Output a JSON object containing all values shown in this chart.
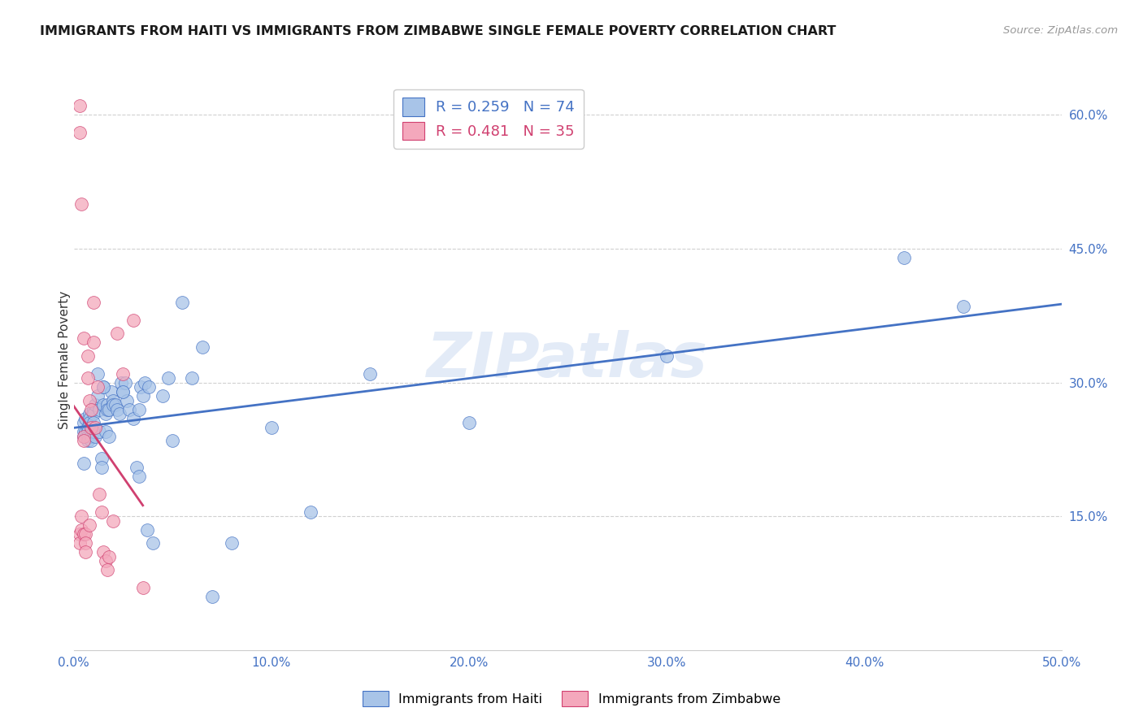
{
  "title": "IMMIGRANTS FROM HAITI VS IMMIGRANTS FROM ZIMBABWE SINGLE FEMALE POVERTY CORRELATION CHART",
  "source": "Source: ZipAtlas.com",
  "ylabel": "Single Female Poverty",
  "xlim": [
    0.0,
    50.0
  ],
  "ylim": [
    0.0,
    65.0
  ],
  "haiti_color": "#a8c4e8",
  "zimbabwe_color": "#f4a8bc",
  "haiti_line_color": "#4472c4",
  "zimbabwe_line_color": "#d04070",
  "watermark": "ZIPatlas",
  "haiti_R": "0.259",
  "haiti_N": "74",
  "zimbabwe_R": "0.481",
  "zimbabwe_N": "35",
  "haiti_label": "Immigrants from Haiti",
  "zimbabwe_label": "Immigrants from Zimbabwe",
  "haiti_x": [
    0.5,
    0.5,
    0.5,
    0.5,
    0.6,
    0.6,
    0.7,
    0.7,
    0.7,
    0.7,
    0.8,
    0.8,
    0.8,
    0.9,
    0.9,
    0.9,
    1.0,
    1.0,
    1.0,
    1.0,
    1.1,
    1.1,
    1.2,
    1.2,
    1.3,
    1.3,
    1.4,
    1.4,
    1.5,
    1.5,
    1.6,
    1.6,
    1.7,
    1.7,
    1.8,
    1.8,
    1.9,
    2.0,
    2.0,
    2.1,
    2.2,
    2.3,
    2.4,
    2.5,
    2.6,
    2.7,
    2.8,
    3.0,
    3.2,
    3.3,
    3.4,
    3.5,
    3.6,
    3.7,
    3.8,
    4.0,
    4.5,
    4.8,
    5.0,
    5.5,
    6.0,
    6.5,
    7.0,
    8.0,
    10.0,
    12.0,
    15.0,
    20.0,
    30.0,
    42.0,
    45.0,
    2.5,
    3.3,
    1.5
  ],
  "haiti_y": [
    25.5,
    24.5,
    24.0,
    21.0,
    26.0,
    24.5,
    25.0,
    24.5,
    24.0,
    23.5,
    26.5,
    26.0,
    25.5,
    24.5,
    24.0,
    23.5,
    27.0,
    26.5,
    25.5,
    24.5,
    24.0,
    27.5,
    31.0,
    28.5,
    27.0,
    24.5,
    21.5,
    20.5,
    29.5,
    27.5,
    26.5,
    24.5,
    27.5,
    27.0,
    27.0,
    24.0,
    29.0,
    28.0,
    27.5,
    27.5,
    27.0,
    26.5,
    30.0,
    29.0,
    30.0,
    28.0,
    27.0,
    26.0,
    20.5,
    19.5,
    29.5,
    28.5,
    30.0,
    13.5,
    29.5,
    12.0,
    28.5,
    30.5,
    23.5,
    39.0,
    30.5,
    34.0,
    6.0,
    12.0,
    25.0,
    15.5,
    31.0,
    25.5,
    33.0,
    44.0,
    38.5,
    29.0,
    27.0,
    29.5
  ],
  "zimbabwe_x": [
    0.3,
    0.3,
    0.3,
    0.3,
    0.4,
    0.4,
    0.4,
    0.5,
    0.5,
    0.5,
    0.5,
    0.6,
    0.6,
    0.6,
    0.7,
    0.7,
    0.8,
    0.8,
    0.9,
    0.9,
    1.0,
    1.0,
    1.1,
    1.2,
    1.3,
    1.4,
    1.5,
    1.6,
    1.7,
    1.8,
    2.0,
    2.2,
    2.5,
    3.0,
    3.5
  ],
  "zimbabwe_y": [
    61.0,
    58.0,
    13.0,
    12.0,
    50.0,
    15.0,
    13.5,
    35.0,
    24.0,
    23.5,
    13.0,
    13.0,
    12.0,
    11.0,
    33.0,
    30.5,
    28.0,
    14.0,
    27.0,
    25.0,
    39.0,
    34.5,
    25.0,
    29.5,
    17.5,
    15.5,
    11.0,
    10.0,
    9.0,
    10.5,
    14.5,
    35.5,
    31.0,
    37.0,
    7.0
  ],
  "xticks": [
    0,
    10,
    20,
    30,
    40,
    50
  ],
  "xticklabels": [
    "0.0%",
    "10.0%",
    "20.0%",
    "30.0%",
    "40.0%",
    "50.0%"
  ],
  "yticks_right": [
    15,
    30,
    45,
    60
  ],
  "yticklabels_right": [
    "15.0%",
    "30.0%",
    "45.0%",
    "60.0%"
  ]
}
